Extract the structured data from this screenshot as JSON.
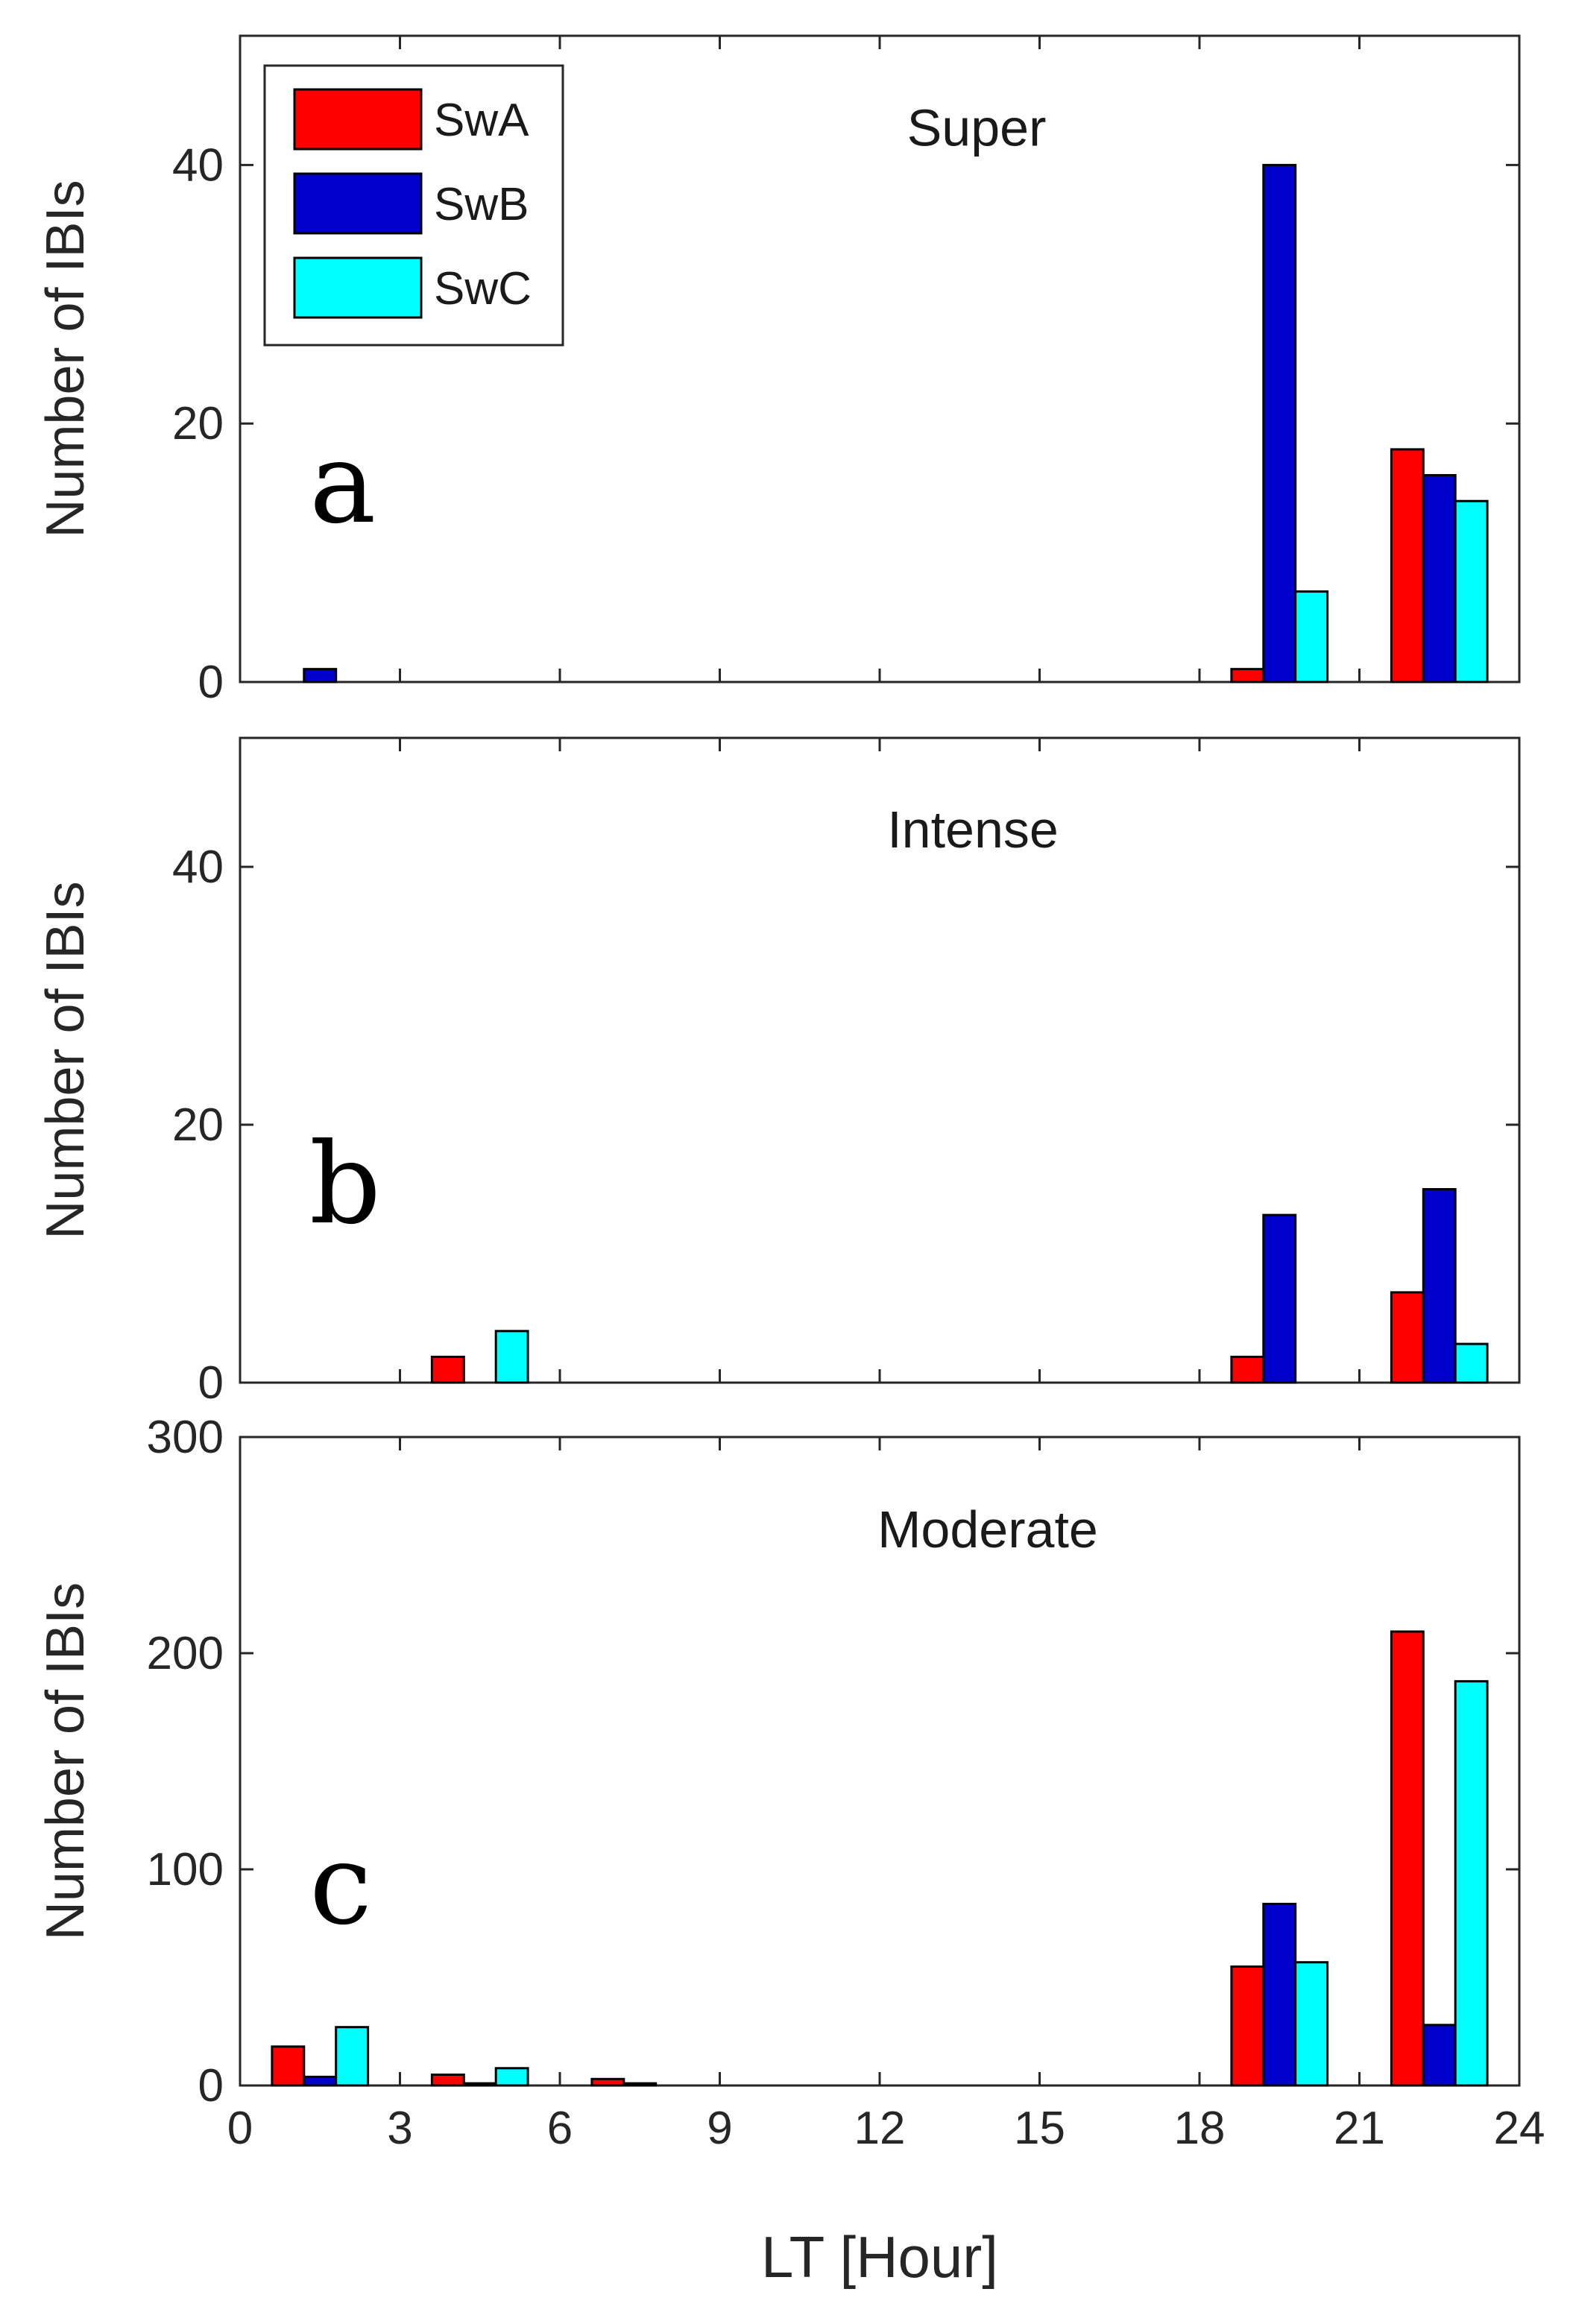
{
  "chart_data": {
    "type": "bar",
    "xlabel": "LT  [Hour]",
    "xlim": [
      0,
      24
    ],
    "x_ticks": [
      "0",
      "3",
      "6",
      "9",
      "12",
      "15",
      "18",
      "21",
      "24"
    ],
    "bin_centers": [
      1.5,
      4.5,
      7.5,
      19.5,
      22.5
    ],
    "legend": [
      {
        "name": "SwA",
        "color": "#ff0000"
      },
      {
        "name": "SwB",
        "color": "#0000cc"
      },
      {
        "name": "SwC",
        "color": "#00ffff"
      }
    ],
    "panels": [
      {
        "id": "a",
        "label": "a",
        "title": "Super",
        "ylabel": "Number of IBIs",
        "ylim": [
          0,
          50
        ],
        "y_ticks": [
          "0",
          "20",
          "40"
        ],
        "series": [
          {
            "name": "SwA",
            "values": [
              0,
              0,
              0,
              1,
              18
            ]
          },
          {
            "name": "SwB",
            "values": [
              1,
              0,
              0,
              40,
              16
            ]
          },
          {
            "name": "SwC",
            "values": [
              0,
              0,
              0,
              7,
              14
            ]
          }
        ]
      },
      {
        "id": "b",
        "label": "b",
        "title": "Intense",
        "ylabel": "Number of IBIs",
        "ylim": [
          0,
          50
        ],
        "y_ticks": [
          "0",
          "20",
          "40"
        ],
        "series": [
          {
            "name": "SwA",
            "values": [
              0,
              2,
              0,
              2,
              7
            ]
          },
          {
            "name": "SwB",
            "values": [
              0,
              0,
              0,
              13,
              15
            ]
          },
          {
            "name": "SwC",
            "values": [
              0,
              4,
              0,
              0,
              3
            ]
          }
        ]
      },
      {
        "id": "c",
        "label": "c",
        "title": "Moderate",
        "ylabel": "Number of IBIs",
        "ylim": [
          0,
          300
        ],
        "y_ticks": [
          "0",
          "100",
          "200",
          "300"
        ],
        "series": [
          {
            "name": "SwA",
            "values": [
              18,
              5,
              3,
              55,
              210
            ]
          },
          {
            "name": "SwB",
            "values": [
              4,
              1,
              1,
              84,
              28
            ]
          },
          {
            "name": "SwC",
            "values": [
              27,
              8,
              0,
              57,
              187
            ]
          }
        ]
      }
    ]
  }
}
